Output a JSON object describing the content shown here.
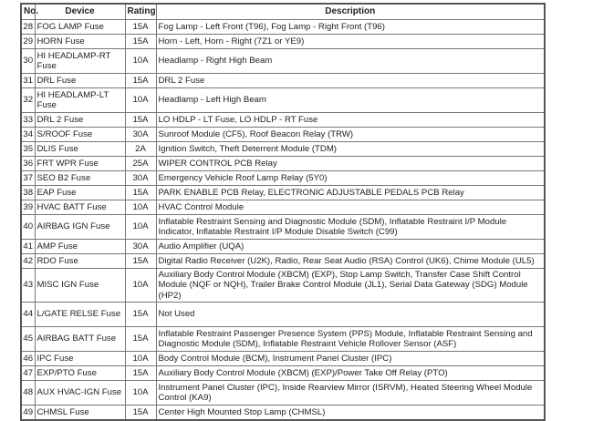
{
  "table": {
    "headers": [
      "No.",
      "Device",
      "Rating",
      "Description"
    ],
    "rows": [
      {
        "no": "28",
        "device": "FOG LAMP Fuse",
        "rating": "15A",
        "description": "Fog Lamp - Left Front (T96), Fog Lamp - Right Front (T96)"
      },
      {
        "no": "29",
        "device": "HORN Fuse",
        "rating": "15A",
        "description": "Horn - Left, Horn - Right (7Z1 or YE9)"
      },
      {
        "no": "30",
        "device": "HI HEADLAMP-RT Fuse",
        "rating": "10A",
        "description": "Headlamp - Right High Beam"
      },
      {
        "no": "31",
        "device": "DRL Fuse",
        "rating": "15A",
        "description": "DRL 2 Fuse"
      },
      {
        "no": "32",
        "device": "HI HEADLAMP-LT Fuse",
        "rating": "10A",
        "description": "Headlamp - Left High Beam"
      },
      {
        "no": "33",
        "device": "DRL 2 Fuse",
        "rating": "15A",
        "description": "LO HDLP - LT Fuse, LO HDLP - RT Fuse"
      },
      {
        "no": "34",
        "device": "S/ROOF Fuse",
        "rating": "30A",
        "description": "Sunroof Module (CF5), Roof Beacon Relay (TRW)"
      },
      {
        "no": "35",
        "device": "DLIS Fuse",
        "rating": "2A",
        "description": "Ignition Switch, Theft Deterrent Module (TDM)"
      },
      {
        "no": "36",
        "device": "FRT WPR Fuse",
        "rating": "25A",
        "description": "WIPER CONTROL PCB Relay"
      },
      {
        "no": "37",
        "device": "SEO B2 Fuse",
        "rating": "30A",
        "description": "Emergency Vehicle Roof Lamp Relay (5Y0)"
      },
      {
        "no": "38",
        "device": "EAP Fuse",
        "rating": "15A",
        "description": "PARK ENABLE PCB Relay, ELECTRONIC ADJUSTABLE PEDALS PCB Relay"
      },
      {
        "no": "39",
        "device": "HVAC BATT Fuse",
        "rating": "10A",
        "description": "HVAC Control Module"
      },
      {
        "no": "40",
        "device": "AIRBAG IGN Fuse",
        "rating": "10A",
        "description": "Inflatable Restraint Sensing and Diagnostic Module (SDM), Inflatable Restraint I/P Module Indicator, Inflatable Restraint I/P Module Disable Switch (C99)"
      },
      {
        "no": "41",
        "device": "AMP Fuse",
        "rating": "30A",
        "description": "Audio Amplifier (UQA)"
      },
      {
        "no": "42",
        "device": "RDO Fuse",
        "rating": "15A",
        "description": "Digital Radio Receiver (U2K), Radio, Rear Seat Audio (RSA) Control (UK6), Chime Module (UL5)"
      },
      {
        "no": "43",
        "device": "MISC IGN Fuse",
        "rating": "10A",
        "description": "Auxiliary Body Control Module (XBCM) (EXP), Stop Lamp Switch, Transfer Case Shift Control Module (NQF or NQH), Trailer Brake Control Module (JL1), Serial Data Gateway (SDG) Module (HP2)"
      },
      {
        "no": "44",
        "device": "L/GATE RELSE Fuse",
        "rating": "15A",
        "description": "Not Used"
      },
      {
        "no": "45",
        "device": "AIRBAG BATT Fuse",
        "rating": "15A",
        "description": "Inflatable Restraint Passenger Presence System (PPS) Module, Inflatable Restraint Sensing and Diagnostic Module (SDM), Inflatable Restraint Vehicle Rollover Sensor (ASF)"
      },
      {
        "no": "46",
        "device": "IPC Fuse",
        "rating": "10A",
        "description": "Body Control Module (BCM), Instrument Panel Cluster (IPC)"
      },
      {
        "no": "47",
        "device": "EXP/PTO Fuse",
        "rating": "15A",
        "description": "Auxiliary Body Control Module (XBCM) (EXP)/Power Take Off Relay (PTO)"
      },
      {
        "no": "48",
        "device": "AUX HVAC-IGN Fuse",
        "rating": "10A",
        "description": "Instrument Panel Cluster (IPC), Inside Rearview Mirror (ISRVM), Heated Steering Wheel Module Control (KA9)"
      },
      {
        "no": "49",
        "device": "CHMSL Fuse",
        "rating": "15A",
        "description": "Center High Mounted Stop Lamp (CHMSL)"
      }
    ]
  }
}
